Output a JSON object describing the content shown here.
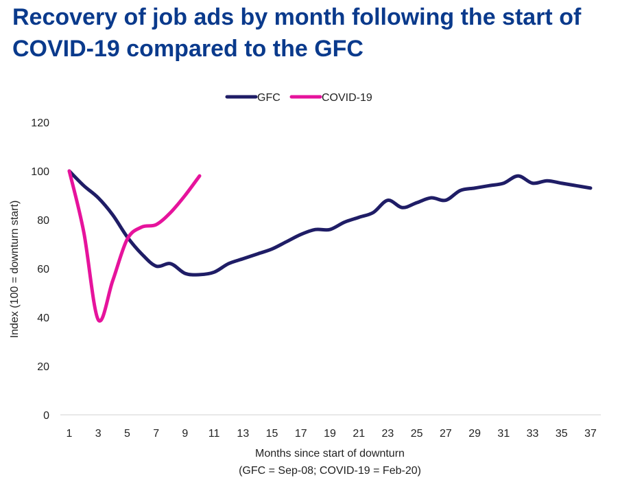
{
  "chart_data": {
    "type": "line",
    "title": "Recovery of job ads by month following the start of COVID-19 compared to the GFC",
    "xlabel": "Months since start of downturn",
    "xlabel_note": "(GFC = Sep-08; COVID-19 = Feb-20)",
    "ylabel": "Index (100 = downturn start)",
    "ylim": [
      0,
      120
    ],
    "yticks": [
      0,
      20,
      40,
      60,
      80,
      100,
      120
    ],
    "xlim": [
      1,
      37
    ],
    "xticks": [
      1,
      3,
      5,
      7,
      9,
      11,
      13,
      15,
      17,
      19,
      21,
      23,
      25,
      27,
      29,
      31,
      33,
      35,
      37
    ],
    "legend_position": "top",
    "series": [
      {
        "name": "GFC",
        "color": "#1f1d66",
        "x": [
          1,
          2,
          3,
          4,
          5,
          6,
          7,
          8,
          9,
          10,
          11,
          12,
          13,
          14,
          15,
          16,
          17,
          18,
          19,
          20,
          21,
          22,
          23,
          24,
          25,
          26,
          27,
          28,
          29,
          30,
          31,
          32,
          33,
          34,
          35,
          36,
          37
        ],
        "values": [
          100,
          94,
          89,
          82,
          73,
          66,
          61,
          62,
          58,
          57.5,
          58.5,
          62,
          64,
          66,
          68,
          71,
          74,
          76,
          76,
          79,
          81,
          83,
          88,
          85,
          87,
          89,
          88,
          92,
          93,
          94,
          95,
          98,
          95,
          96,
          95,
          94,
          93
        ]
      },
      {
        "name": "COVID-19",
        "color": "#e6139c",
        "x": [
          1,
          2,
          3,
          4,
          5,
          6,
          7,
          8,
          9,
          10
        ],
        "values": [
          100,
          75,
          39,
          55,
          72,
          77,
          78,
          83,
          90,
          98
        ]
      }
    ]
  }
}
